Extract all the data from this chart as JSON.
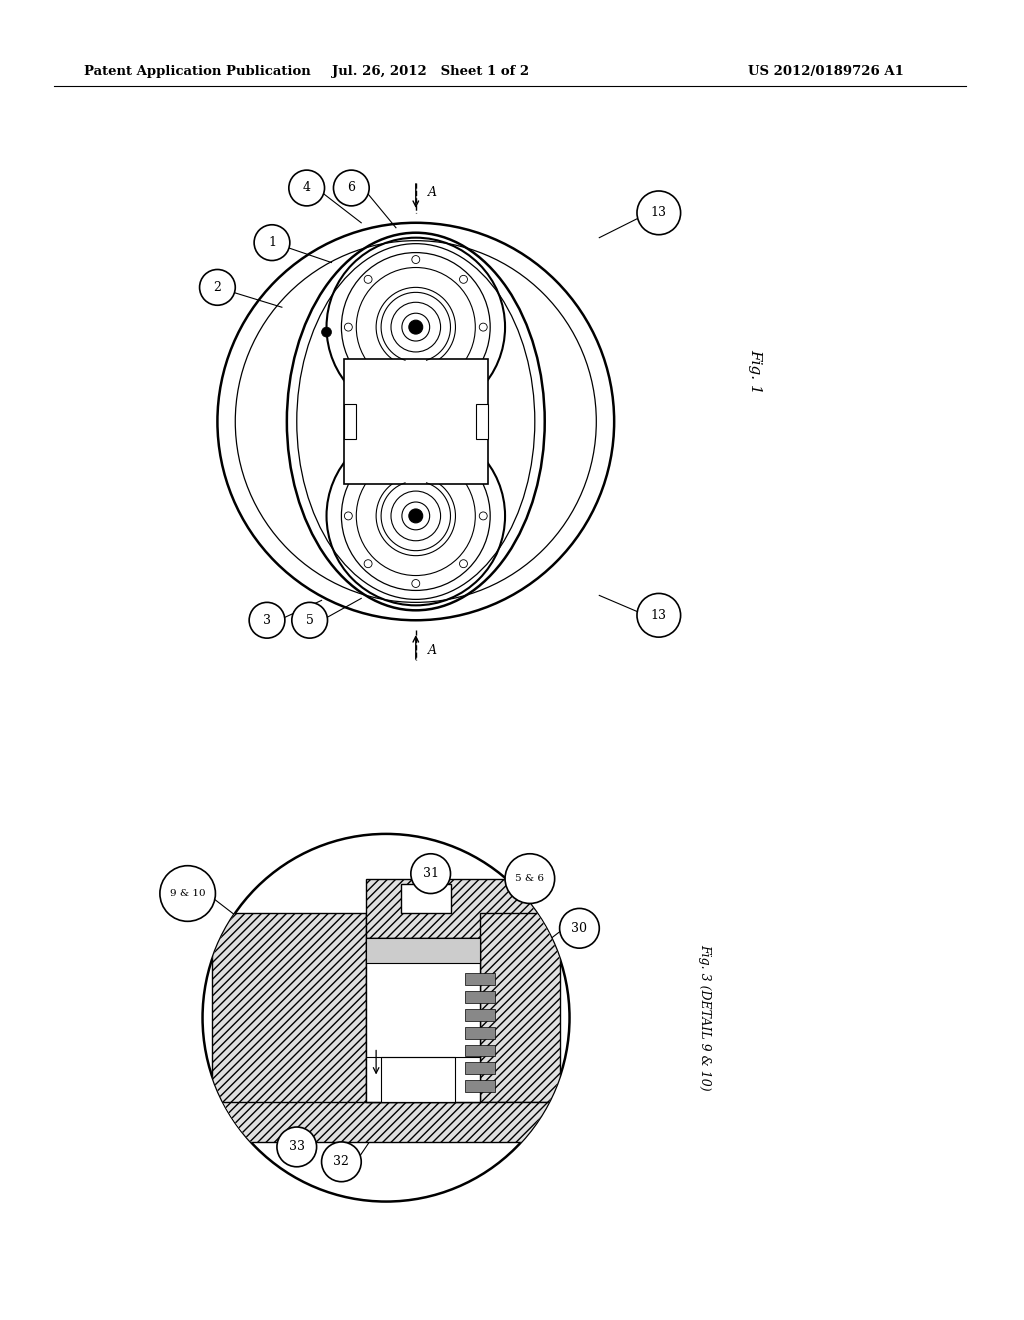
{
  "background_color": "#ffffff",
  "header_left": "Patent Application Publication",
  "header_center": "Jul. 26, 2012   Sheet 1 of 2",
  "header_right": "US 2012/0189726 A1",
  "fig1_label": "Fig. 1",
  "fig3_label": "Fig. 3 (DETAIL 9 & 10)"
}
